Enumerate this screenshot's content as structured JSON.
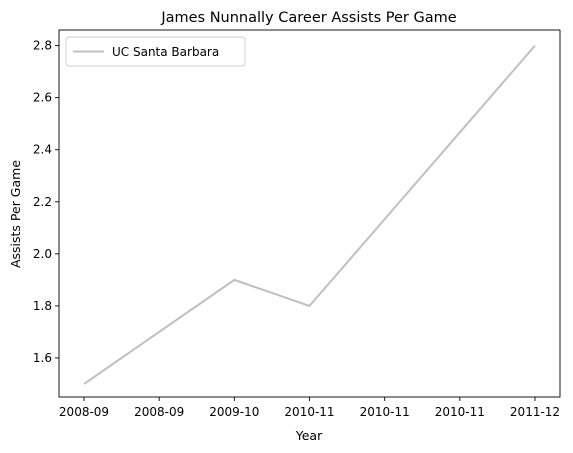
{
  "chart_data": {
    "type": "line",
    "title": "James Nunnally Career Assists Per Game",
    "xlabel": "Year",
    "ylabel": "Assists Per Game",
    "x_ticks": [
      "2008-09",
      "2008-09",
      "2009-10",
      "2010-11",
      "2010-11",
      "2010-11",
      "2011-12"
    ],
    "y_ticks": [
      "1.6",
      "1.8",
      "2.0",
      "2.2",
      "2.4",
      "2.6",
      "2.8"
    ],
    "ylim": [
      1.45,
      2.86
    ],
    "grid": false,
    "legend_position": "top-left",
    "series": [
      {
        "name": "UC Santa Barbara",
        "color": "#bfbfbf",
        "x": [
          "2008-09",
          "2009-10",
          "2010-11",
          "2011-12"
        ],
        "values": [
          1.5,
          1.9,
          1.8,
          2.8
        ]
      }
    ]
  }
}
